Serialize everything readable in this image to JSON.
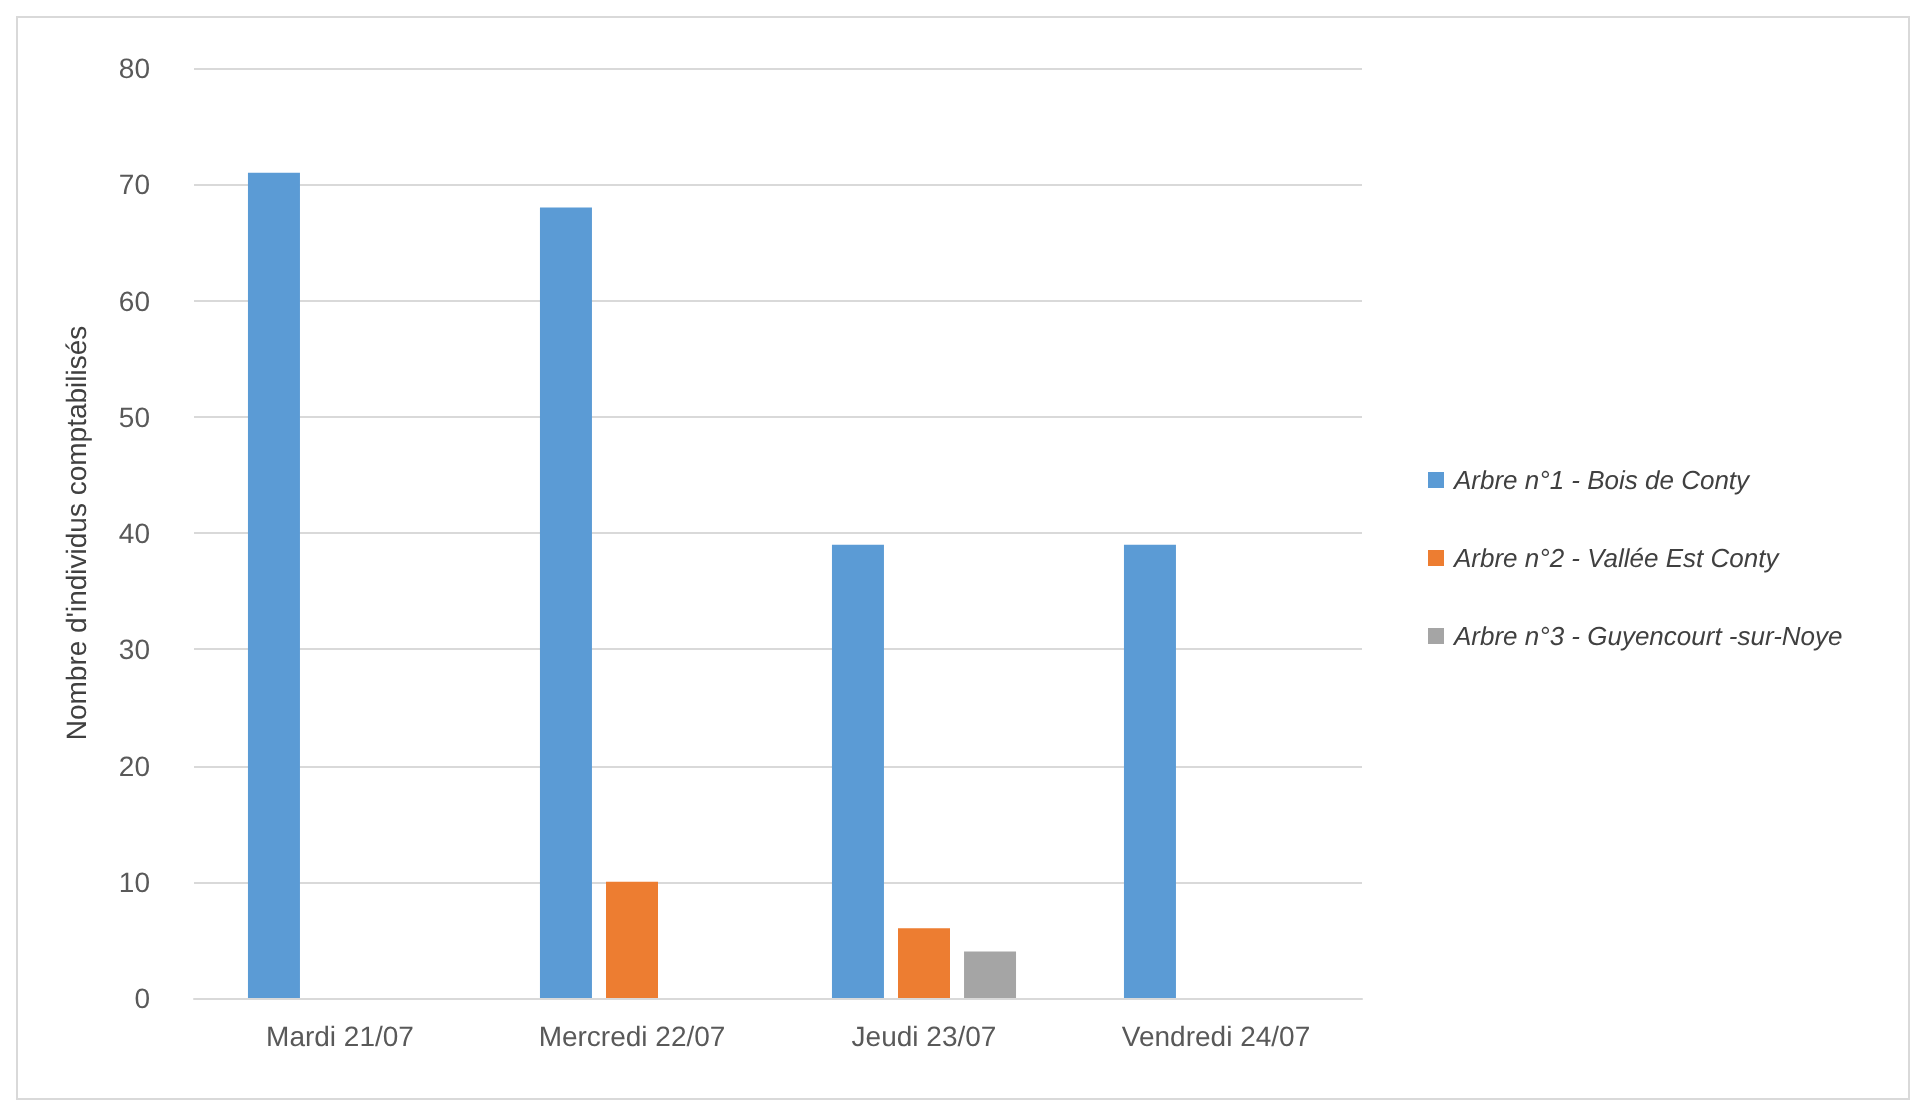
{
  "chart_data": {
    "type": "bar",
    "ylabel": "Nombre d'individus comptabilisés",
    "categories": [
      "Mardi 21/07",
      "Mercredi 22/07",
      "Jeudi 23/07",
      "Vendredi 24/07"
    ],
    "series": [
      {
        "name": "Arbre n°1 - Bois de Conty",
        "color": "#5b9bd5",
        "values": [
          71,
          68,
          39,
          39
        ]
      },
      {
        "name": "Arbre n°2 - Vallée Est Conty",
        "color": "#ed7d31",
        "values": [
          null,
          10,
          6,
          null
        ]
      },
      {
        "name": "Arbre n°3 - Guyencourt -sur-Noye",
        "color": "#a5a5a5",
        "values": [
          null,
          null,
          4,
          null
        ]
      }
    ],
    "ylim": [
      0,
      80
    ],
    "yticks": [
      0,
      10,
      20,
      30,
      40,
      50,
      60,
      70,
      80
    ],
    "grid": "y",
    "legend": "right"
  }
}
